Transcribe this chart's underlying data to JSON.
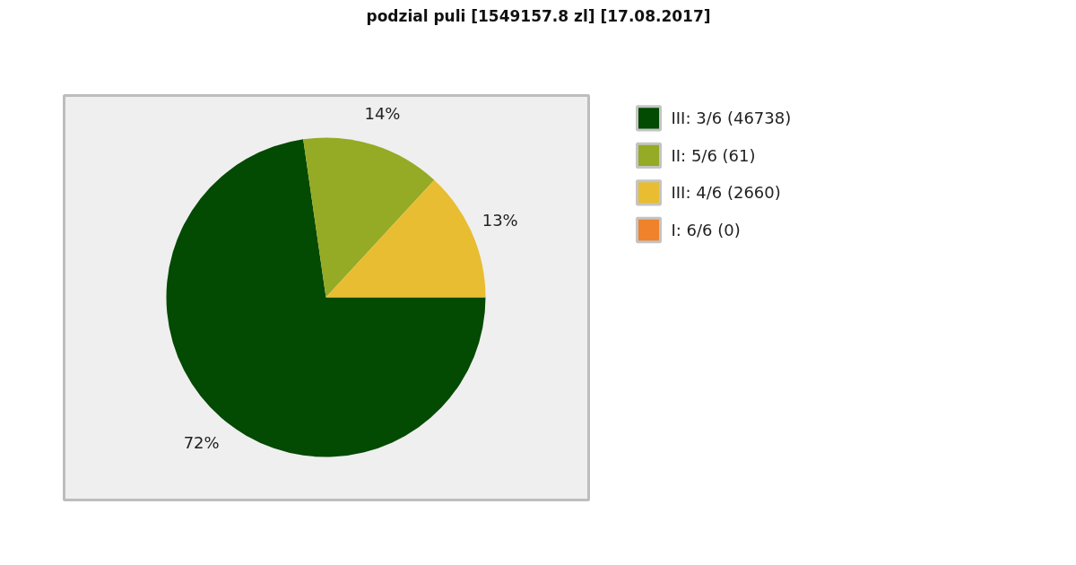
{
  "chart_data": {
    "type": "pie",
    "title": "podzial puli [1549157.8 zl] [17.08.2017]",
    "categories": [
      "III: 3/6 (46738)",
      "II: 5/6 (61)",
      "III: 4/6 (2660)",
      "I: 6/6 (0)"
    ],
    "values": [
      72,
      14,
      13,
      0
    ],
    "colors": [
      "#034a02",
      "#95aa25",
      "#e8bd31",
      "#ef822b"
    ],
    "value_labels": [
      "72%",
      "14%",
      "13%",
      null
    ],
    "legend": "right"
  }
}
